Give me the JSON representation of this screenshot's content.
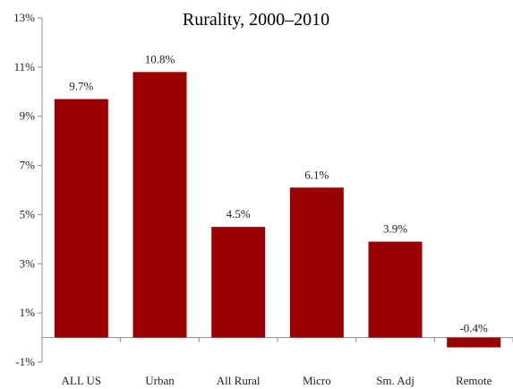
{
  "chart_data": {
    "type": "bar",
    "title": "Rurality, 2000–2010",
    "xlabel": "",
    "ylabel": "",
    "ylim": [
      -1,
      13
    ],
    "y_ticks": [
      -1,
      1,
      3,
      5,
      7,
      9,
      11,
      13
    ],
    "y_tick_labels": [
      "-1%",
      "1%",
      "3%",
      "5%",
      "7%",
      "9%",
      "11%",
      "13%"
    ],
    "categories": [
      "ALL US",
      "Urban",
      "All Rural",
      "Micro",
      "Sm. Adj",
      "Remote"
    ],
    "values": [
      9.7,
      10.8,
      4.5,
      6.1,
      3.9,
      -0.4
    ],
    "data_labels": [
      "9.7%",
      "10.8%",
      "4.5%",
      "6.1%",
      "3.9%",
      "-0.4%"
    ],
    "bar_color": "#9b0000",
    "axis_color": "#8c8c8c",
    "grid": false,
    "legend": "none"
  }
}
